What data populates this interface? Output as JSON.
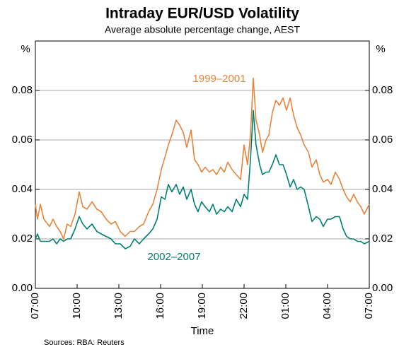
{
  "chart_data": {
    "type": "line",
    "title": "Intraday EUR/USD Volatility",
    "subtitle": "Average absolute percentage change, AEST",
    "x_label": "Time",
    "y_unit": "%",
    "source": "Sources: RBA: Reuters",
    "xlim": [
      0,
      24
    ],
    "xticks": [
      {
        "value": 0,
        "label": "07:00"
      },
      {
        "value": 3,
        "label": "10:00"
      },
      {
        "value": 6,
        "label": "13:00"
      },
      {
        "value": 9,
        "label": "16:00"
      },
      {
        "value": 12,
        "label": "19:00"
      },
      {
        "value": 15,
        "label": "22:00"
      },
      {
        "value": 18,
        "label": "01:00"
      },
      {
        "value": 21,
        "label": "04:00"
      },
      {
        "value": 24,
        "label": "07:00"
      }
    ],
    "ylim": [
      0,
      0.1
    ],
    "yticks": [
      {
        "value": 0,
        "label": "0.00"
      },
      0.02,
      0.04,
      0.06,
      0.08
    ],
    "grid": true,
    "x": [
      0,
      0.15,
      0.36,
      0.61,
      1.02,
      1.27,
      1.53,
      1.78,
      2.03,
      2.29,
      2.54,
      2.85,
      3.15,
      3.41,
      3.71,
      4.07,
      4.42,
      4.73,
      5.08,
      5.44,
      5.75,
      6.1,
      6.46,
      6.81,
      7.12,
      7.47,
      7.78,
      8.14,
      8.44,
      8.75,
      9.05,
      9.31,
      9.56,
      9.81,
      10.12,
      10.37,
      10.63,
      10.88,
      11.19,
      11.44,
      11.69,
      11.95,
      12.2,
      12.51,
      12.76,
      13.02,
      13.32,
      13.58,
      13.83,
      14.14,
      14.44,
      14.75,
      15.0,
      15.25,
      15.46,
      15.66,
      15.86,
      16.12,
      16.32,
      16.58,
      16.78,
      17.03,
      17.29,
      17.54,
      17.8,
      18.05,
      18.31,
      18.56,
      18.81,
      19.07,
      19.32,
      19.63,
      19.88,
      20.19,
      20.44,
      20.69,
      21.0,
      21.25,
      21.56,
      21.86,
      22.12,
      22.37,
      22.63,
      22.88,
      23.14,
      23.39,
      23.64,
      24
    ],
    "series": [
      {
        "name": "1999–2001",
        "color": "#e8843c",
        "values": [
          0.034,
          0.028,
          0.034,
          0.028,
          0.025,
          0.028,
          0.025,
          0.023,
          0.02,
          0.026,
          0.025,
          0.03,
          0.039,
          0.033,
          0.032,
          0.035,
          0.032,
          0.031,
          0.028,
          0.026,
          0.027,
          0.023,
          0.021,
          0.023,
          0.023,
          0.025,
          0.026,
          0.031,
          0.034,
          0.04,
          0.048,
          0.053,
          0.058,
          0.062,
          0.068,
          0.066,
          0.063,
          0.057,
          0.064,
          0.052,
          0.05,
          0.047,
          0.049,
          0.047,
          0.048,
          0.046,
          0.049,
          0.047,
          0.051,
          0.048,
          0.046,
          0.044,
          0.058,
          0.05,
          0.062,
          0.085,
          0.068,
          0.062,
          0.055,
          0.06,
          0.062,
          0.071,
          0.076,
          0.074,
          0.077,
          0.072,
          0.077,
          0.07,
          0.065,
          0.062,
          0.058,
          0.055,
          0.049,
          0.052,
          0.046,
          0.043,
          0.044,
          0.042,
          0.047,
          0.044,
          0.04,
          0.037,
          0.035,
          0.038,
          0.035,
          0.033,
          0.03,
          0.034
        ]
      },
      {
        "name": "2002–2007",
        "color": "#00806f",
        "values": [
          0.02,
          0.022,
          0.019,
          0.019,
          0.019,
          0.02,
          0.018,
          0.02,
          0.019,
          0.02,
          0.02,
          0.024,
          0.029,
          0.026,
          0.024,
          0.026,
          0.023,
          0.022,
          0.021,
          0.02,
          0.018,
          0.018,
          0.016,
          0.017,
          0.02,
          0.018,
          0.02,
          0.022,
          0.024,
          0.028,
          0.037,
          0.036,
          0.042,
          0.039,
          0.042,
          0.038,
          0.041,
          0.036,
          0.04,
          0.034,
          0.031,
          0.035,
          0.033,
          0.031,
          0.034,
          0.03,
          0.032,
          0.031,
          0.033,
          0.031,
          0.036,
          0.033,
          0.038,
          0.036,
          0.052,
          0.072,
          0.058,
          0.05,
          0.046,
          0.047,
          0.047,
          0.05,
          0.054,
          0.05,
          0.05,
          0.046,
          0.041,
          0.044,
          0.04,
          0.041,
          0.04,
          0.033,
          0.027,
          0.029,
          0.028,
          0.025,
          0.028,
          0.028,
          0.029,
          0.029,
          0.024,
          0.021,
          0.02,
          0.02,
          0.019,
          0.019,
          0.018,
          0.019
        ]
      }
    ]
  }
}
